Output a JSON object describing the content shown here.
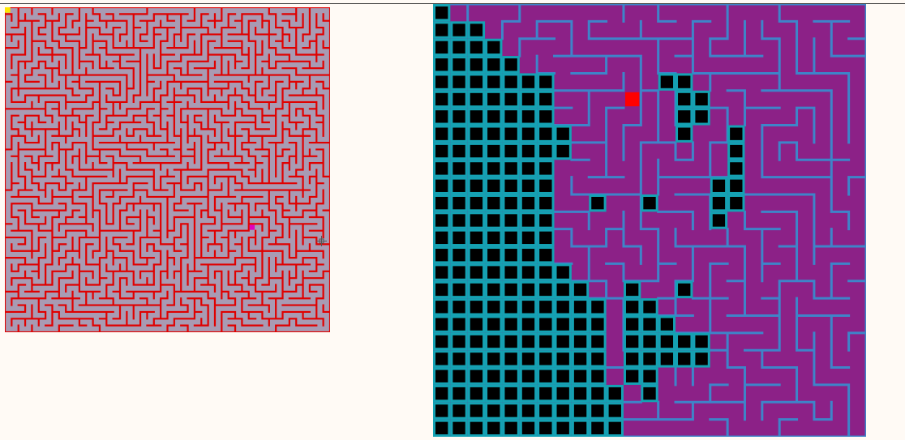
{
  "colors": {
    "background": "#fffaf5",
    "top_rule": "#3a3a3a",
    "overview_floor": "#a89bb3",
    "overview_walls": "#e00000",
    "overview_start_marker": "#ffe600",
    "overview_player_marker": "#e000c0",
    "detail_floor": "#8c2187",
    "detail_walls": "#3e84c9",
    "detail_fog": "#000000",
    "detail_fog_grid": "#14a2b3",
    "detail_player": "#ff0000"
  },
  "overview_map": {
    "cells": 48,
    "start_marker_cell": [
      0,
      0
    ],
    "player_marker_cell": [
      36,
      32
    ],
    "seed": 7
  },
  "detail_view": {
    "cells": 25,
    "player_cell": [
      11,
      5
    ],
    "seed": 3,
    "fog_left_edge_by_row": [
      1,
      3,
      4,
      5,
      7,
      7,
      7,
      8,
      8,
      7,
      7,
      7,
      7,
      7,
      7,
      8,
      9,
      10,
      10,
      10,
      10,
      10,
      11,
      11,
      11
    ],
    "fog_islands": [
      [
        13,
        4
      ],
      [
        14,
        4
      ],
      [
        14,
        5
      ],
      [
        15,
        5
      ],
      [
        14,
        6
      ],
      [
        15,
        6
      ],
      [
        14,
        7
      ],
      [
        17,
        7
      ],
      [
        17,
        8
      ],
      [
        17,
        9
      ],
      [
        16,
        10
      ],
      [
        17,
        10
      ],
      [
        16,
        11
      ],
      [
        17,
        11
      ],
      [
        16,
        12
      ],
      [
        9,
        11
      ],
      [
        12,
        11
      ],
      [
        11,
        16
      ],
      [
        14,
        16
      ],
      [
        11,
        17
      ],
      [
        12,
        17
      ],
      [
        11,
        18
      ],
      [
        12,
        18
      ],
      [
        13,
        18
      ],
      [
        11,
        19
      ],
      [
        12,
        19
      ],
      [
        13,
        19
      ],
      [
        14,
        19
      ],
      [
        15,
        19
      ],
      [
        11,
        20
      ],
      [
        12,
        20
      ],
      [
        13,
        20
      ],
      [
        14,
        20
      ],
      [
        15,
        20
      ],
      [
        11,
        21
      ],
      [
        12,
        21
      ],
      [
        12,
        22
      ]
    ]
  },
  "cursor_icon": "crosshair-icon"
}
